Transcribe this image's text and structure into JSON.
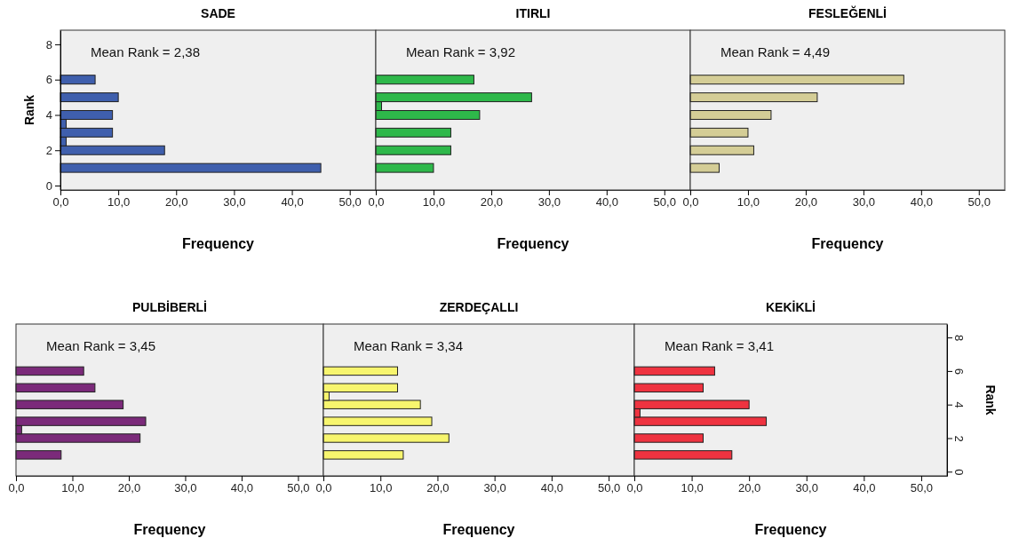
{
  "chart_data": [
    {
      "type": "histogram",
      "orientation": "horizontal",
      "title": "SADE",
      "xlabel": "Frequency",
      "ylabel": "Rank",
      "annotations": [
        "Mean Rank = 2,38"
      ],
      "bins": [
        0.75,
        1.25,
        1.75,
        2.25,
        2.75,
        3.25,
        3.75,
        4.25,
        4.75,
        5.25,
        5.75,
        6.25
      ],
      "values": [
        45,
        0,
        18,
        1,
        9,
        1,
        9,
        0,
        10,
        0,
        6
      ],
      "color": "#3f5fad",
      "xlim": [
        0,
        54.5
      ],
      "xticks": [
        {
          "value": 0,
          "label": "0,0"
        },
        {
          "value": 10,
          "label": "10,0"
        },
        {
          "value": 20,
          "label": "20,0"
        },
        {
          "value": 30,
          "label": "30,0"
        },
        {
          "value": 40,
          "label": "40,0"
        },
        {
          "value": 50,
          "label": "50,0"
        }
      ],
      "ylim": [
        -0.25,
        8.8
      ],
      "yticks": [
        0,
        2,
        4,
        6,
        8
      ]
    },
    {
      "type": "histogram",
      "orientation": "horizontal",
      "title": "ITIRLI",
      "xlabel": "Frequency",
      "annotations": [
        "Mean Rank = 3,92"
      ],
      "bins": [
        0.75,
        1.25,
        1.75,
        2.25,
        2.75,
        3.25,
        3.75,
        4.25,
        4.75,
        5.25,
        5.75,
        6.25
      ],
      "values": [
        10,
        0,
        13,
        0,
        13,
        0,
        18,
        1,
        27,
        0,
        17
      ],
      "color": "#2eb84a",
      "xlim": [
        0,
        54.5
      ],
      "xticks": [
        {
          "value": 0,
          "label": "0,0"
        },
        {
          "value": 10,
          "label": "10,0"
        },
        {
          "value": 20,
          "label": "20,0"
        },
        {
          "value": 30,
          "label": "30,0"
        },
        {
          "value": 40,
          "label": "40,0"
        },
        {
          "value": 50,
          "label": "50,0"
        }
      ],
      "ylim": [
        -0.25,
        8.8
      ],
      "tick_labels": "x"
    },
    {
      "type": "histogram",
      "orientation": "horizontal",
      "title": "FESLEĞENLİ",
      "xlabel": "Frequency",
      "annotations": [
        "Mean Rank = 4,49"
      ],
      "bins": [
        0.75,
        1.25,
        1.75,
        2.25,
        2.75,
        3.25,
        3.75,
        4.25,
        4.75,
        5.25,
        5.75,
        6.25
      ],
      "values": [
        5,
        0,
        11,
        0,
        10,
        0,
        14,
        0,
        22,
        0,
        37
      ],
      "color": "#d4cd96",
      "xlim": [
        0,
        54.5
      ],
      "xticks": [
        {
          "value": 0,
          "label": "0,0"
        },
        {
          "value": 10,
          "label": "10,0"
        },
        {
          "value": 20,
          "label": "20,0"
        },
        {
          "value": 30,
          "label": "30,0"
        },
        {
          "value": 40,
          "label": "40,0"
        },
        {
          "value": 50,
          "label": "50,0"
        }
      ],
      "ylim": [
        -0.25,
        8.8
      ],
      "tick_labels": "x"
    },
    {
      "type": "histogram",
      "orientation": "horizontal",
      "title": "PULBİBERLİ",
      "xlabel": "Frequency",
      "annotations": [
        "Mean Rank = 3,45"
      ],
      "bins": [
        0.75,
        1.25,
        1.75,
        2.25,
        2.75,
        3.25,
        3.75,
        4.25,
        4.75,
        5.25,
        5.75,
        6.25
      ],
      "values": [
        8,
        0,
        22,
        1,
        23,
        0,
        19,
        0,
        14,
        0,
        12
      ],
      "color": "#7b2a7a",
      "xlim": [
        0,
        54.5
      ],
      "xticks": [
        {
          "value": 0,
          "label": "0,0"
        },
        {
          "value": 10,
          "label": "10,0"
        },
        {
          "value": 20,
          "label": "20,0"
        },
        {
          "value": 30,
          "label": "30,0"
        },
        {
          "value": 40,
          "label": "40,0"
        },
        {
          "value": 50,
          "label": "50,0"
        }
      ],
      "ylim": [
        -0.25,
        8.8
      ],
      "tick_labels": "x"
    },
    {
      "type": "histogram",
      "orientation": "horizontal",
      "title": "ZERDEÇALLI",
      "xlabel": "Frequency",
      "annotations": [
        "Mean Rank = 3,34"
      ],
      "bins": [
        0.75,
        1.25,
        1.75,
        2.25,
        2.75,
        3.25,
        3.75,
        4.25,
        4.75,
        5.25,
        5.75,
        6.25
      ],
      "values": [
        14,
        0,
        22,
        0,
        19,
        0,
        17,
        1,
        13,
        0,
        13
      ],
      "color": "#f7f56e",
      "xlim": [
        0,
        54.5
      ],
      "xticks": [
        {
          "value": 0,
          "label": "0,0"
        },
        {
          "value": 10,
          "label": "10,0"
        },
        {
          "value": 20,
          "label": "20,0"
        },
        {
          "value": 30,
          "label": "30,0"
        },
        {
          "value": 40,
          "label": "40,0"
        },
        {
          "value": 50,
          "label": "50,0"
        }
      ],
      "ylim": [
        -0.25,
        8.8
      ],
      "tick_labels": "x"
    },
    {
      "type": "histogram",
      "orientation": "horizontal",
      "title": "KEKİKLİ",
      "xlabel": "Frequency",
      "ylabel": "Rank",
      "annotations": [
        "Mean Rank = 3,41"
      ],
      "bins": [
        0.75,
        1.25,
        1.75,
        2.25,
        2.75,
        3.25,
        3.75,
        4.25,
        4.75,
        5.25,
        5.75,
        6.25
      ],
      "values": [
        17,
        0,
        12,
        0,
        23,
        1,
        20,
        0,
        12,
        0,
        14
      ],
      "color": "#ef3340",
      "xlim": [
        0,
        54.5
      ],
      "xticks": [
        {
          "value": 0,
          "label": "0,0"
        },
        {
          "value": 10,
          "label": "10,0"
        },
        {
          "value": 20,
          "label": "20,0"
        },
        {
          "value": 30,
          "label": "30,0"
        },
        {
          "value": 40,
          "label": "40,0"
        },
        {
          "value": 50,
          "label": "50,0"
        }
      ],
      "ylim": [
        -0.25,
        8.8
      ],
      "yticks": [
        0,
        2,
        4,
        6,
        8
      ]
    }
  ]
}
